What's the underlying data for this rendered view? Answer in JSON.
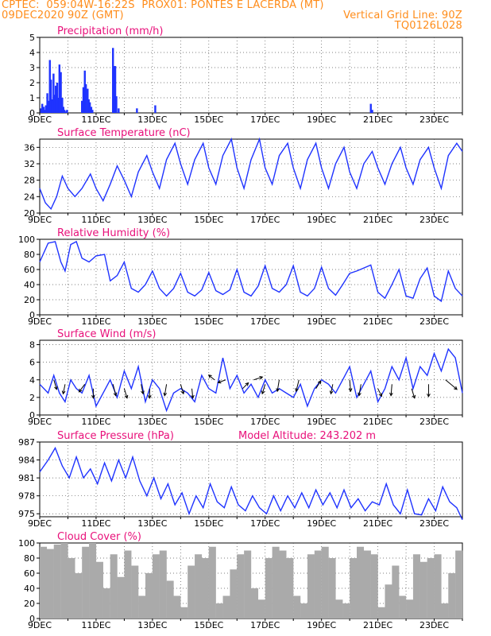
{
  "header": {
    "title": "CPTEC:  059:04W-16:22S  PROX01: PONTES E LACERDA (MT)",
    "date": "09DEC2020 90Z (GMT)",
    "grid": "Vertical Grid Line: 90Z",
    "code": "TQ0126L028"
  },
  "colors": {
    "header": "#ff8c1a",
    "title": "#e8107a",
    "series": "#1f33ff",
    "cloud": "#aaaaaa",
    "arrow": "#000000"
  },
  "x_labels": [
    "9DEC",
    "11DEC",
    "13DEC",
    "15DEC",
    "17DEC",
    "19DEC",
    "21DEC",
    "23DEC"
  ],
  "x_range_days": [
    0,
    15
  ],
  "chart_data": [
    {
      "id": "precip",
      "type": "bar",
      "title": "Precipitation (mm/h)",
      "extra": "",
      "yticks": [
        "0",
        "1",
        "2",
        "3",
        "4",
        "5"
      ],
      "ylim": [
        0,
        5
      ],
      "grid": true,
      "x": [
        0.05,
        0.09,
        0.14,
        0.18,
        0.22,
        0.27,
        0.31,
        0.36,
        0.4,
        0.44,
        0.49,
        0.53,
        0.57,
        0.62,
        0.66,
        0.7,
        0.75,
        0.8,
        0.84,
        0.88,
        0.93,
        0.97,
        1.5,
        1.55,
        1.6,
        1.64,
        1.7,
        1.74,
        1.78,
        1.83,
        1.87,
        2.6,
        2.64,
        2.68,
        2.72,
        2.8,
        3.45,
        4.1,
        11.75,
        11.8
      ],
      "values": [
        0.3,
        0.6,
        0.4,
        0.2,
        0.5,
        1.3,
        0.8,
        3.5,
        2.2,
        0.9,
        2.6,
        1.2,
        1.8,
        2.0,
        1.0,
        3.2,
        2.7,
        1.0,
        0.4,
        0.2,
        0.1,
        0.2,
        0.8,
        1.7,
        2.8,
        1.9,
        1.6,
        0.9,
        0.7,
        0.4,
        0.2,
        4.3,
        3.1,
        3.1,
        1.1,
        0.3,
        0.3,
        0.5,
        0.6,
        0.2
      ]
    },
    {
      "id": "temp",
      "type": "line",
      "title": "Surface Temperature (nC)",
      "extra": "",
      "yticks": [
        "20",
        "24",
        "28",
        "32",
        "36"
      ],
      "ylim": [
        20,
        38
      ],
      "grid": true,
      "x": [
        0,
        0.2,
        0.4,
        0.6,
        0.8,
        1.0,
        1.25,
        1.5,
        1.8,
        2.0,
        2.25,
        2.5,
        2.75,
        3.0,
        3.25,
        3.5,
        3.8,
        4.0,
        4.25,
        4.5,
        4.8,
        5.0,
        5.25,
        5.5,
        5.8,
        6.0,
        6.25,
        6.5,
        6.8,
        7.0,
        7.25,
        7.5,
        7.8,
        8.0,
        8.25,
        8.5,
        8.8,
        9.0,
        9.25,
        9.5,
        9.8,
        10.0,
        10.25,
        10.5,
        10.8,
        11.0,
        11.25,
        11.5,
        11.8,
        12.0,
        12.25,
        12.5,
        12.8,
        13.0,
        13.25,
        13.5,
        13.8,
        14.0,
        14.25,
        14.5,
        14.8,
        15.0
      ],
      "values": [
        26,
        22.5,
        21,
        24,
        29,
        26,
        24,
        26,
        29.5,
        26,
        23,
        27,
        31.5,
        28,
        24,
        30,
        34,
        30,
        26,
        33,
        37,
        32,
        27,
        33,
        37,
        31,
        27,
        34,
        38,
        31,
        26,
        33,
        38,
        31,
        27,
        34,
        37,
        31,
        26,
        33,
        37,
        31,
        26,
        32,
        36,
        30,
        26,
        32,
        35,
        31,
        27,
        32,
        36,
        31,
        27,
        33,
        36,
        31,
        26,
        34,
        37,
        35
      ]
    },
    {
      "id": "rh",
      "type": "line",
      "title": "Relative Humidity (%)",
      "extra": "",
      "yticks": [
        "0",
        "20",
        "40",
        "60",
        "80",
        "100"
      ],
      "ylim": [
        0,
        100
      ],
      "grid": true,
      "x": [
        0,
        0.3,
        0.55,
        0.75,
        0.9,
        1.1,
        1.3,
        1.5,
        1.75,
        2.0,
        2.3,
        2.5,
        2.75,
        3.0,
        3.25,
        3.5,
        3.75,
        4.0,
        4.25,
        4.5,
        4.75,
        5.0,
        5.25,
        5.5,
        5.75,
        6.0,
        6.25,
        6.5,
        6.75,
        7.0,
        7.25,
        7.5,
        7.75,
        8.0,
        8.25,
        8.5,
        8.75,
        9.0,
        9.25,
        9.5,
        9.75,
        10.0,
        10.25,
        10.5,
        10.75,
        11.0,
        11.25,
        11.5,
        11.75,
        12.0,
        12.25,
        12.5,
        12.75,
        13.0,
        13.25,
        13.5,
        13.75,
        14.0,
        14.25,
        14.5,
        14.75,
        15.0
      ],
      "values": [
        70,
        95,
        97,
        70,
        58,
        93,
        97,
        75,
        70,
        78,
        80,
        45,
        52,
        70,
        35,
        30,
        40,
        58,
        35,
        25,
        35,
        55,
        30,
        25,
        33,
        56,
        32,
        27,
        33,
        60,
        30,
        25,
        38,
        65,
        35,
        30,
        40,
        65,
        30,
        25,
        35,
        63,
        35,
        26,
        40,
        55,
        58,
        62,
        66,
        30,
        22,
        40,
        60,
        25,
        22,
        48,
        62,
        25,
        18,
        58,
        35,
        25
      ]
    },
    {
      "id": "wind",
      "type": "line",
      "title": "Surface Wind (m/s)",
      "extra": "",
      "yticks": [
        "0",
        "2",
        "4",
        "6",
        "8"
      ],
      "ylim": [
        0,
        8.5
      ],
      "grid": true,
      "x": [
        0,
        0.3,
        0.5,
        0.7,
        0.9,
        1.1,
        1.3,
        1.5,
        1.75,
        2.0,
        2.25,
        2.5,
        2.75,
        3.0,
        3.25,
        3.5,
        3.75,
        4.0,
        4.25,
        4.5,
        4.75,
        5.0,
        5.25,
        5.5,
        5.75,
        6.0,
        6.25,
        6.5,
        6.75,
        7.0,
        7.25,
        7.5,
        7.75,
        8.0,
        8.25,
        8.5,
        8.75,
        9.0,
        9.25,
        9.5,
        9.75,
        10.0,
        10.25,
        10.5,
        10.75,
        11.0,
        11.25,
        11.5,
        11.75,
        12.0,
        12.25,
        12.5,
        12.75,
        13.0,
        13.25,
        13.5,
        13.75,
        14.0,
        14.25,
        14.5,
        14.75,
        15.0
      ],
      "values": [
        3.5,
        2.5,
        4.5,
        2.5,
        1.5,
        4.0,
        3.0,
        2.5,
        4.5,
        1.0,
        2.5,
        4.0,
        2.0,
        5.0,
        3.0,
        5.5,
        1.5,
        4.0,
        3.0,
        0.5,
        2.5,
        3.0,
        2.5,
        1.5,
        4.5,
        3.0,
        2.5,
        6.5,
        3.0,
        4.5,
        2.5,
        3.5,
        2.0,
        4.0,
        2.5,
        3.0,
        2.5,
        2.0,
        3.5,
        1.0,
        3.0,
        4.0,
        3.5,
        2.5,
        4.0,
        5.5,
        2.0,
        3.5,
        5.0,
        1.5,
        3.0,
        5.5,
        4.0,
        6.5,
        3.0,
        5.5,
        4.5,
        7.0,
        5.0,
        7.5,
        6.5,
        2.5
      ],
      "arrows": [
        {
          "t": 0.5,
          "v": 4.0,
          "u": 0.3,
          "w": -1.0
        },
        {
          "t": 0.9,
          "v": 3.5,
          "u": -0.2,
          "w": -1.0
        },
        {
          "t": 1.6,
          "v": 3.5,
          "u": -0.6,
          "w": -0.8
        },
        {
          "t": 1.9,
          "v": 3.0,
          "u": 0.0,
          "w": -1.0
        },
        {
          "t": 2.6,
          "v": 3.5,
          "u": 0.3,
          "w": -1.2
        },
        {
          "t": 3.0,
          "v": 3.0,
          "u": 0.3,
          "w": -1.0
        },
        {
          "t": 3.6,
          "v": 3.5,
          "u": 0.2,
          "w": -1.0
        },
        {
          "t": 3.9,
          "v": 3.0,
          "u": 0.0,
          "w": -1.0
        },
        {
          "t": 4.5,
          "v": 3.5,
          "u": -0.2,
          "w": -1.2
        },
        {
          "t": 5.0,
          "v": 3.5,
          "u": 0.3,
          "w": -1.0
        },
        {
          "t": 5.4,
          "v": 3.0,
          "u": 0.1,
          "w": -1.0
        },
        {
          "t": 6.2,
          "v": 4.0,
          "u": -0.6,
          "w": 0.5
        },
        {
          "t": 6.6,
          "v": 4.0,
          "u": -0.8,
          "w": -0.3
        },
        {
          "t": 7.2,
          "v": 3.0,
          "u": 0.6,
          "w": 0.6
        },
        {
          "t": 7.6,
          "v": 4.0,
          "u": 0.9,
          "w": 0.3
        },
        {
          "t": 8.0,
          "v": 3.5,
          "u": -0.3,
          "w": -1.0
        },
        {
          "t": 8.5,
          "v": 4.0,
          "u": -0.2,
          "w": -1.2
        },
        {
          "t": 9.2,
          "v": 4.0,
          "u": -0.3,
          "w": -1.2
        },
        {
          "t": 9.8,
          "v": 3.0,
          "u": 0.5,
          "w": 0.8
        },
        {
          "t": 10.4,
          "v": 3.5,
          "u": -0.2,
          "w": -1.0
        },
        {
          "t": 11.0,
          "v": 4.0,
          "u": 0.1,
          "w": -1.2
        },
        {
          "t": 11.4,
          "v": 3.5,
          "u": -0.2,
          "w": -1.2
        },
        {
          "t": 12.0,
          "v": 3.0,
          "u": 0.4,
          "w": -0.8
        },
        {
          "t": 12.5,
          "v": 3.5,
          "u": -0.1,
          "w": -1.2
        },
        {
          "t": 13.2,
          "v": 3.0,
          "u": 0.3,
          "w": -1.0
        },
        {
          "t": 13.8,
          "v": 3.5,
          "u": 0.0,
          "w": -1.3
        },
        {
          "t": 14.4,
          "v": 4.0,
          "u": 1.2,
          "w": -1.0
        }
      ]
    },
    {
      "id": "pres",
      "type": "line",
      "title": "Surface Pressure (hPa)",
      "extra": "Model Altitude: 243.202 m",
      "yticks": [
        "975",
        "978",
        "981",
        "984",
        "987"
      ],
      "ylim": [
        974.5,
        987
      ],
      "grid": true,
      "x": [
        0,
        0.3,
        0.55,
        0.8,
        1.05,
        1.3,
        1.55,
        1.8,
        2.05,
        2.3,
        2.55,
        2.8,
        3.05,
        3.3,
        3.55,
        3.8,
        4.05,
        4.3,
        4.55,
        4.8,
        5.05,
        5.3,
        5.55,
        5.8,
        6.05,
        6.3,
        6.55,
        6.8,
        7.05,
        7.3,
        7.55,
        7.8,
        8.05,
        8.3,
        8.55,
        8.8,
        9.05,
        9.3,
        9.55,
        9.8,
        10.05,
        10.3,
        10.55,
        10.8,
        11.05,
        11.3,
        11.55,
        11.8,
        12.05,
        12.3,
        12.55,
        12.8,
        13.05,
        13.3,
        13.55,
        13.8,
        14.05,
        14.3,
        14.55,
        14.8,
        15.0
      ],
      "values": [
        982,
        984,
        986,
        983,
        981,
        984.5,
        981,
        982.5,
        980,
        983.5,
        980.5,
        984,
        981,
        984.5,
        980.5,
        978,
        981,
        977.5,
        980,
        976.5,
        978.5,
        975,
        978,
        976,
        980,
        977,
        976,
        979.5,
        976.5,
        975.5,
        978,
        976,
        975,
        978,
        975.5,
        978,
        976,
        978.5,
        976,
        979,
        976.5,
        978.5,
        976,
        979,
        976,
        977.5,
        975.5,
        977,
        976.5,
        980,
        976.5,
        975,
        979,
        975,
        974.8,
        977.5,
        975.5,
        979.5,
        977,
        976,
        974
      ]
    },
    {
      "id": "cloud",
      "type": "bar",
      "title": "Cloud Cover (%)",
      "extra": "",
      "yticks": [
        "0",
        "20",
        "40",
        "60",
        "80",
        "100"
      ],
      "ylim": [
        0,
        100
      ],
      "grid": true,
      "x": [
        0.0,
        0.25,
        0.5,
        0.75,
        1.0,
        1.25,
        1.5,
        1.75,
        2.0,
        2.25,
        2.5,
        2.75,
        3.0,
        3.25,
        3.5,
        3.75,
        4.0,
        4.25,
        4.5,
        4.75,
        5.0,
        5.25,
        5.5,
        5.75,
        6.0,
        6.25,
        6.5,
        6.75,
        7.0,
        7.25,
        7.5,
        7.75,
        8.0,
        8.25,
        8.5,
        8.75,
        9.0,
        9.25,
        9.5,
        9.75,
        10.0,
        10.25,
        10.5,
        10.75,
        11.0,
        11.25,
        11.5,
        11.75,
        12.0,
        12.25,
        12.5,
        12.75,
        13.0,
        13.25,
        13.5,
        13.75,
        14.0,
        14.25,
        14.5,
        14.75
      ],
      "values": [
        95,
        92,
        98,
        100,
        80,
        60,
        95,
        100,
        75,
        40,
        85,
        55,
        90,
        70,
        30,
        60,
        85,
        90,
        50,
        30,
        15,
        70,
        85,
        80,
        95,
        20,
        30,
        65,
        85,
        90,
        40,
        25,
        80,
        95,
        90,
        80,
        30,
        20,
        85,
        90,
        95,
        80,
        25,
        20,
        80,
        95,
        90,
        85,
        15,
        45,
        70,
        30,
        25,
        85,
        75,
        80,
        85,
        20,
        60,
        90
      ]
    }
  ]
}
